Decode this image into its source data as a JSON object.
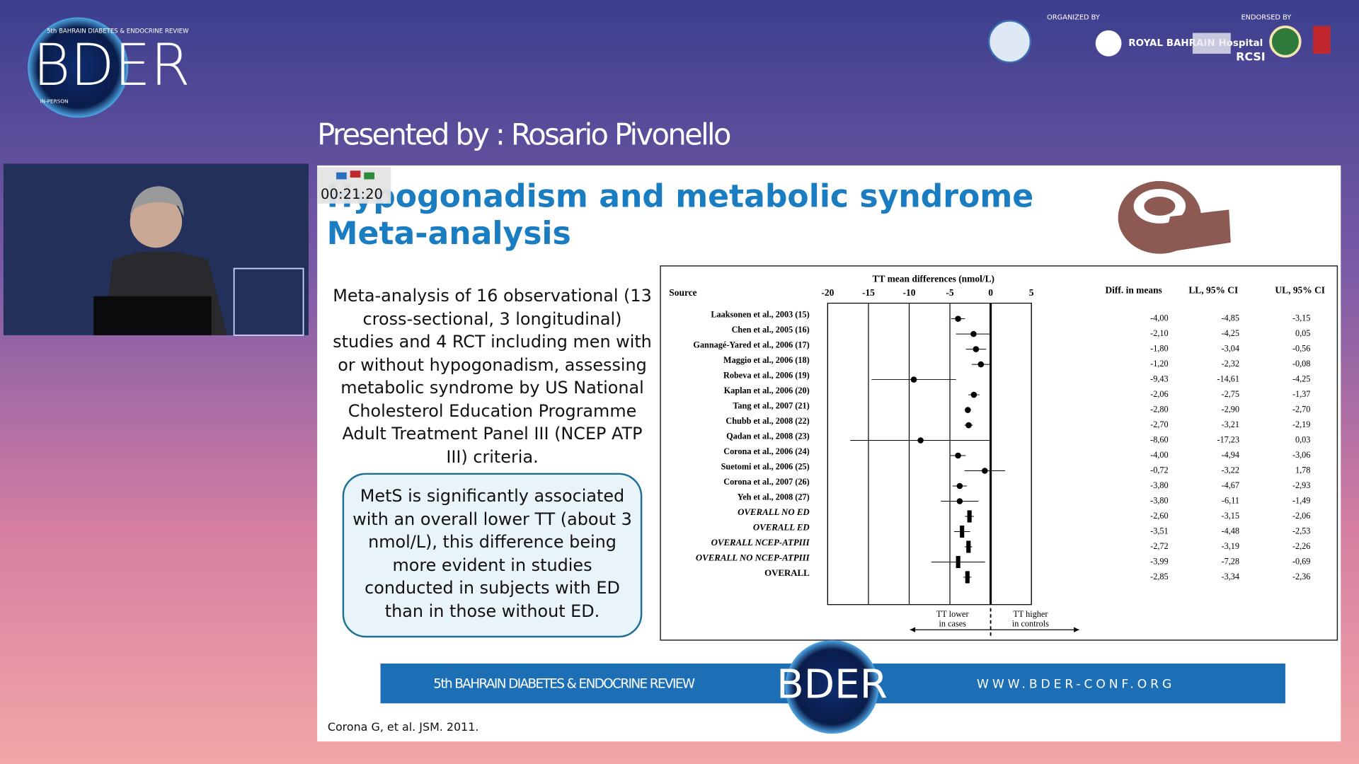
{
  "header": {
    "conference_line": "5th BAHRAIN DIABETES & ENDOCRINE REVIEW",
    "logo": "BDER",
    "mode": "IN-PERSON",
    "organized_by": "ORGANIZED BY",
    "endorsed_by": "ENDORSED BY",
    "hospital": "ROYAL BAHRAIN Hospital",
    "rcsi": "RCSI"
  },
  "presenter": "Presented by : Rosario Pivonello",
  "timer": "00:21:20",
  "slide": {
    "title": [
      "Hypogonadism and metabolic syndrome",
      "Meta-analysis"
    ],
    "body": "Meta-analysis of 16 observational (13 cross-sectional, 3 longitudinal) studies and 4 RCT including men with or without hypogonadism, assessing metabolic syndrome by US National Cholesterol Education Programme Adult Treatment Panel III (NCEP ATP III) criteria.",
    "callout": "MetS is significantly associated with an overall lower TT (about 3 nmol/L), this difference being more evident in studies conducted in subjects with ED than in those without ED.",
    "banner_left": "5th BAHRAIN DIABETES & ENDOCRINE REVIEW",
    "banner_logo": "BDER",
    "banner_right": "WWW.BDER-CONF.ORG",
    "citation": "Corona G, et al. JSM. 2011."
  },
  "chart_data": {
    "type": "forest",
    "title": "TT mean differences (nmol/L)",
    "source_label": "Source",
    "categories": [
      "Laaksonen et al., 2003 (15)",
      "Chen et al., 2005 (16)",
      "Gannagé-Yared et al., 2006 (17)",
      "Maggio et al., 2006 (18)",
      "Robeva et al., 2006 (19)",
      "Kaplan et al., 2006 (20)",
      "Tang et al., 2007 (21)",
      "Chubb et al., 2008 (22)",
      "Qadan et al., 2008 (23)",
      "Corona et al., 2006 (24)",
      "Suetomi et al., 2006 (25)",
      "Corona et al., 2007 (26)",
      "Yeh et al., 2008 (27)",
      "OVERALL NO ED",
      "OVERALL ED",
      "OVERALL NCEP-ATPIII",
      "OVERALL NO NCEP-ATPIII",
      "OVERALL"
    ],
    "series": [
      {
        "name": "Diff. in means",
        "color": "#000000",
        "values": [
          -4.0,
          -2.1,
          -1.8,
          -1.2,
          -9.43,
          -2.06,
          -2.8,
          -2.7,
          -8.6,
          -4.0,
          -0.72,
          -3.8,
          -3.8,
          -2.6,
          -3.51,
          -2.72,
          -3.99,
          -2.85
        ],
        "value_labels": [
          "-4,00",
          "-2,10",
          "-1,80",
          "-1,20",
          "-9,43",
          "-2,06",
          "-2,80",
          "-2,70",
          "-8,60",
          "-4,00",
          "-0,72",
          "-3,80",
          "-3,80",
          "-2,60",
          "-3,51",
          "-2,72",
          "-3,99",
          "-2,85"
        ]
      },
      {
        "name": "LL, 95% CI",
        "color": "#000000",
        "values": [
          -4.85,
          -4.25,
          -3.04,
          -2.32,
          -14.61,
          -2.75,
          -2.9,
          -3.21,
          -17.23,
          -4.94,
          -3.22,
          -4.67,
          -6.11,
          -3.15,
          -4.48,
          -3.19,
          -7.28,
          -3.34
        ],
        "value_labels": [
          "-4,85",
          "-4,25",
          "-3,04",
          "-2,32",
          "-14,61",
          "-2,75",
          "-2,90",
          "-3,21",
          "-17,23",
          "-4,94",
          "-3,22",
          "-4,67",
          "-6,11",
          "-3,15",
          "-4,48",
          "-3,19",
          "-7,28",
          "-3,34"
        ]
      },
      {
        "name": "UL, 95% CI",
        "color": "#000000",
        "values": [
          -3.15,
          0.05,
          -0.56,
          -0.08,
          -4.25,
          -1.37,
          -2.7,
          -2.19,
          0.03,
          -3.06,
          1.78,
          -2.93,
          -1.49,
          -2.06,
          -2.53,
          -2.26,
          -0.69,
          -2.36
        ],
        "value_labels": [
          "-3,15",
          "0,05",
          "-0,56",
          "-0,08",
          "-4,25",
          "-1,37",
          "-2,70",
          "-2,19",
          "0,03",
          "-3,06",
          "1,78",
          "-2,93",
          "-1,49",
          "-2,06",
          "-2,53",
          "-2,26",
          "-0,69",
          "-2,36"
        ]
      }
    ],
    "xlim": [
      -20,
      5
    ],
    "xticks": [
      -20,
      -15,
      -10,
      -5,
      0,
      5
    ],
    "grid": true,
    "annotations": [
      "TT lower",
      "in cases",
      "TT higher",
      "in controls"
    ]
  }
}
